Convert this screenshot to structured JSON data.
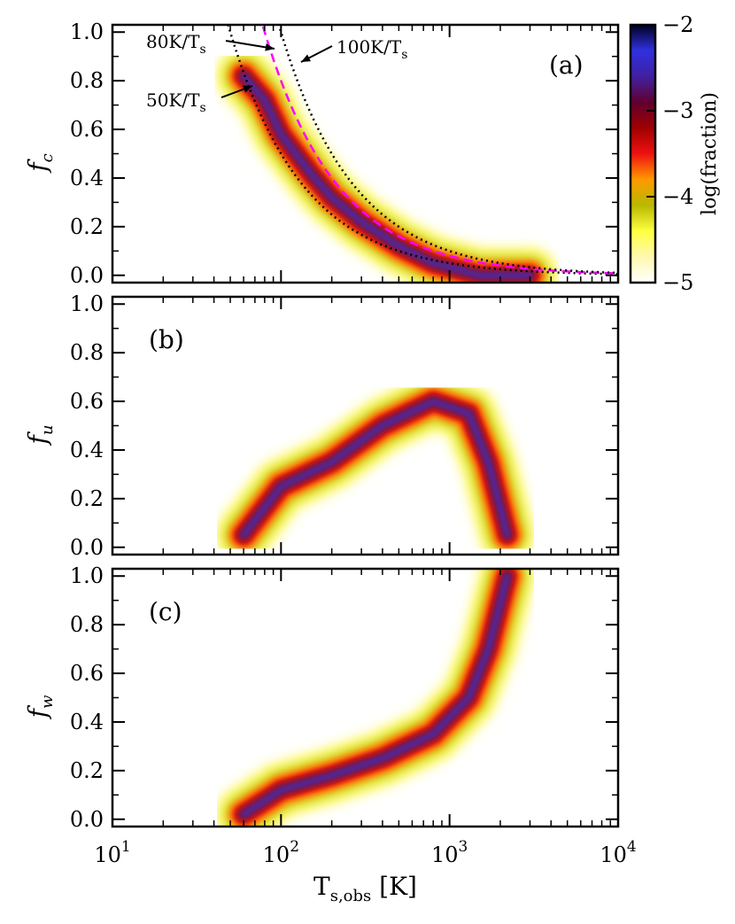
{
  "chart_data": {
    "type": "heatmap",
    "description_axes": "shared log x-axis",
    "x_scale": "log",
    "xlim": [
      10,
      10000
    ],
    "xlabel": {
      "main": "T",
      "sub": "s,obs",
      "unit": " [K]"
    },
    "xticks": [
      {
        "value": 10,
        "base": "10",
        "exp": "1"
      },
      {
        "value": 100,
        "base": "10",
        "exp": "2"
      },
      {
        "value": 1000,
        "base": "10",
        "exp": "3"
      },
      {
        "value": 10000,
        "base": "10",
        "exp": "4"
      }
    ],
    "yticks": [
      "0.0",
      "0.2",
      "0.4",
      "0.6",
      "0.8",
      "1.0"
    ],
    "ylim": [
      -0.03,
      1.03
    ],
    "colorbar": {
      "label": "log(fraction)",
      "range": [
        -5,
        -2
      ],
      "ticks": [
        "-2",
        "-3",
        "-4",
        "-5"
      ],
      "colormap": [
        "#ffffff",
        "#fff8b0",
        "#ffff40",
        "#b8b800",
        "#ff9900",
        "#ee1111",
        "#a00000",
        "#600030",
        "#4020a0",
        "#3030e0",
        "#000020"
      ]
    },
    "panels": [
      {
        "id": "a",
        "label": "(a)",
        "ylabel": {
          "main": "f",
          "sub": "c"
        },
        "ridge": [
          [
            60,
            0.82
          ],
          [
            80,
            0.72
          ],
          [
            100,
            0.58
          ],
          [
            150,
            0.42
          ],
          [
            200,
            0.32
          ],
          [
            300,
            0.22
          ],
          [
            500,
            0.12
          ],
          [
            800,
            0.05
          ],
          [
            1500,
            0.0
          ],
          [
            3000,
            0.0
          ]
        ],
        "curves": [
          {
            "name": "50K/T_s",
            "coef": 50,
            "style": "dotted",
            "color": "#000000"
          },
          {
            "name": "80K/T_s",
            "coef": 80,
            "style": "dashed",
            "color": "#ff00ff"
          },
          {
            "name": "100K/T_s",
            "coef": 100,
            "style": "dotted",
            "color": "#000000"
          }
        ],
        "annotations": [
          {
            "text": "80K/T",
            "sub": "s"
          },
          {
            "text": "100K/T",
            "sub": "s"
          },
          {
            "text": "50K/T",
            "sub": "s"
          }
        ]
      },
      {
        "id": "b",
        "label": "(b)",
        "ylabel": {
          "main": "f",
          "sub": "u"
        },
        "ridge": [
          [
            60,
            0.05
          ],
          [
            100,
            0.25
          ],
          [
            200,
            0.35
          ],
          [
            400,
            0.5
          ],
          [
            800,
            0.6
          ],
          [
            1300,
            0.55
          ],
          [
            1700,
            0.35
          ],
          [
            2200,
            0.05
          ]
        ]
      },
      {
        "id": "c",
        "label": "(c)",
        "ylabel": {
          "main": "f",
          "sub": "w"
        },
        "ridge": [
          [
            60,
            0.02
          ],
          [
            100,
            0.12
          ],
          [
            200,
            0.18
          ],
          [
            400,
            0.25
          ],
          [
            800,
            0.35
          ],
          [
            1300,
            0.5
          ],
          [
            1700,
            0.7
          ],
          [
            2200,
            1.0
          ]
        ]
      }
    ]
  }
}
